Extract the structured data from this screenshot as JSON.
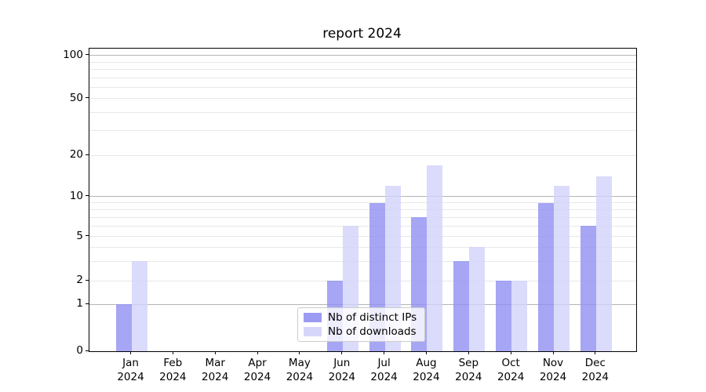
{
  "title": "report 2024",
  "chart_data": {
    "type": "bar",
    "title": "report 2024",
    "categories": [
      "Jan",
      "Feb",
      "Mar",
      "Apr",
      "May",
      "Jun",
      "Jul",
      "Aug",
      "Sep",
      "Oct",
      "Nov",
      "Dec"
    ],
    "category_year": "2024",
    "series": [
      {
        "name": "Nb of distinct IPs",
        "color": "#9090f2",
        "values": [
          1,
          0,
          0,
          0,
          0,
          2,
          9,
          7,
          3,
          2,
          9,
          6
        ]
      },
      {
        "name": "Nb of downloads",
        "color": "#d2d2fa",
        "values": [
          3,
          0,
          0,
          0,
          0,
          6,
          12,
          17,
          4,
          2,
          12,
          14
        ]
      }
    ],
    "xlabel": "",
    "ylabel": "",
    "y_axis": {
      "tick_labels": [
        "0",
        "1",
        "2",
        "5",
        "10",
        "20",
        "50",
        "100"
      ],
      "tick_values": [
        0,
        1,
        2,
        5,
        10,
        20,
        50,
        100
      ],
      "scale": "log above 1, linear 0-1",
      "ylim": [
        0,
        113
      ],
      "major_gridline_values": [
        1,
        10,
        100
      ],
      "minor_gridline_values": [
        2,
        3,
        4,
        5,
        6,
        7,
        8,
        9,
        20,
        30,
        40,
        50,
        60,
        70,
        80,
        90
      ],
      "major_gridline_color": "#b4b4b4",
      "minor_gridline_color": "#e8e8e8"
    },
    "legend_position": "lower center",
    "grid": true,
    "background_color": "#ffffff",
    "text_color": "#000000"
  }
}
